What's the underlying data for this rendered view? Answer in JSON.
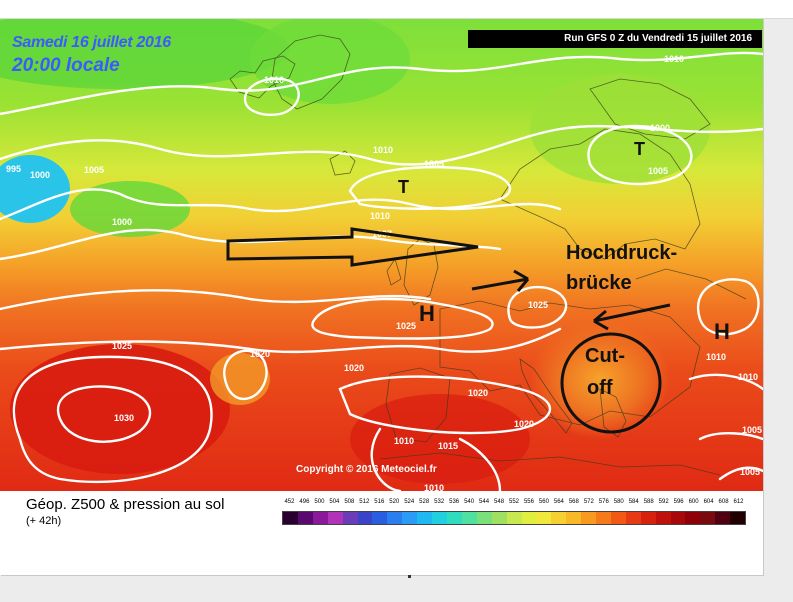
{
  "header": {
    "date_line": "Samedi 16 juillet 2016",
    "time_line": "20:00 locale",
    "run_info": "Run GFS 0 Z du Vendredi 15 juillet 2016",
    "copyright": "Copyright © 2016 Meteociel.fr"
  },
  "isobar_labels": {
    "p995": "995",
    "p1000a": "1000",
    "p1005a": "1005",
    "p1010a": "1010",
    "p1000b": "1000",
    "p1010b": "1010",
    "p1005b": "1005",
    "p1010c": "1010",
    "p1000c": "1000",
    "p1005c": "1005",
    "p1010d": "1010",
    "p1007": "1007",
    "p1025a": "1025",
    "p1025b": "1025",
    "p1020a": "1020",
    "p1020b": "1020",
    "p1030": "1030",
    "p1025c": "1025",
    "p1020c": "1020",
    "p1020d": "1020",
    "p1010e": "1010",
    "p1015": "1015",
    "p1010f": "1010",
    "p1010g": "1010",
    "p1010h": "1010",
    "p1005d": "1005",
    "p1005e": "1005"
  },
  "pressure_centers": {
    "low_iceland": "T",
    "low_scandinavia": "T",
    "high_france": "H",
    "high_balkans": "H"
  },
  "annotations": {
    "hochdruck_1": "Hochdruck-",
    "hochdruck_2": "brücke",
    "cutoff_1": "Cut-",
    "cutoff_2": "off"
  },
  "legend": {
    "title": "Géop. Z500 & pression au sol",
    "subtitle": "(+ 42h)",
    "scale_values": [
      "452",
      "496",
      "500",
      "504",
      "508",
      "512",
      "516",
      "520",
      "524",
      "528",
      "532",
      "536",
      "540",
      "544",
      "548",
      "552",
      "556",
      "560",
      "564",
      "568",
      "572",
      "576",
      "580",
      "584",
      "588",
      "592",
      "596",
      "600",
      "604",
      "608",
      "612"
    ],
    "scale_colors": [
      "#2a0030",
      "#5a0a6e",
      "#8a1a9a",
      "#b033b8",
      "#6a3cb8",
      "#3a44c8",
      "#2a5ee0",
      "#2a7ef0",
      "#2a9cf5",
      "#20b8f0",
      "#20d0e0",
      "#30dcc0",
      "#50e0a0",
      "#7ae07a",
      "#a0e060",
      "#c8e850",
      "#e0ee40",
      "#f0e83a",
      "#f5d030",
      "#f8b828",
      "#f89a20",
      "#f57a1a",
      "#f05a15",
      "#e83a12",
      "#d8200e",
      "#c0100c",
      "#a8080a",
      "#900008",
      "#780a10",
      "#500010",
      "#200000"
    ]
  },
  "colors": {
    "annotation_ink": "#111111",
    "isobar": "#ffffff",
    "datetime_text": "#3a5cff"
  }
}
